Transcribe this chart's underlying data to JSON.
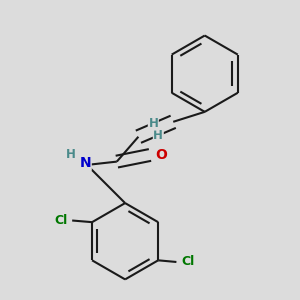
{
  "background_color": "#dcdcdc",
  "bond_color": "#1a1a1a",
  "bond_width": 1.5,
  "atom_colors": {
    "O": "#cc0000",
    "N": "#0000cc",
    "Cl": "#007700",
    "H": "#4a8a8a",
    "C": "#1a1a1a"
  },
  "font_size_atom": 10,
  "font_size_H": 8.5,
  "font_size_Cl": 9
}
